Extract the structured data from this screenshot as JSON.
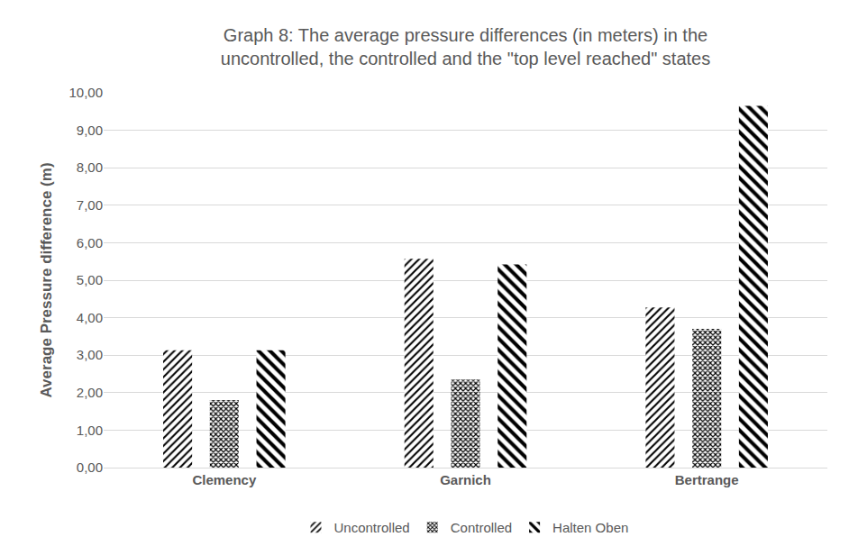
{
  "chart_data": {
    "type": "bar",
    "title": "Graph 8: The average pressure differences (in meters) in the\nuncontrolled, the controlled and the \"top level reached\" states",
    "y_label": "Average Pressure difference (m)",
    "categories": [
      "Clemency",
      "Garnich",
      "Bertrange"
    ],
    "series": [
      {
        "name": "Uncontrolled",
        "color": "#000000",
        "values": [
          3.13,
          5.57,
          4.27
        ]
      },
      {
        "name": "Controlled",
        "color": "#000000",
        "values": [
          1.8,
          2.35,
          3.7
        ]
      },
      {
        "name": "Halten Oben",
        "color": "#000000",
        "values": [
          3.13,
          5.42,
          9.65
        ]
      }
    ],
    "ylim": [
      0,
      10
    ],
    "yticks": [
      {
        "value": 0,
        "label": "0,00"
      },
      {
        "value": 1,
        "label": "1,00"
      },
      {
        "value": 2,
        "label": "2,00"
      },
      {
        "value": 3,
        "label": "3,00"
      },
      {
        "value": 4,
        "label": "4,00"
      },
      {
        "value": 5,
        "label": "5,00"
      },
      {
        "value": 6,
        "label": "6,00"
      },
      {
        "value": 7,
        "label": "7,00"
      },
      {
        "value": 8,
        "label": "8,00"
      },
      {
        "value": 9,
        "label": "9,00"
      },
      {
        "value": 10,
        "label": "10,00"
      }
    ],
    "grid": true,
    "legend": "bottom"
  }
}
